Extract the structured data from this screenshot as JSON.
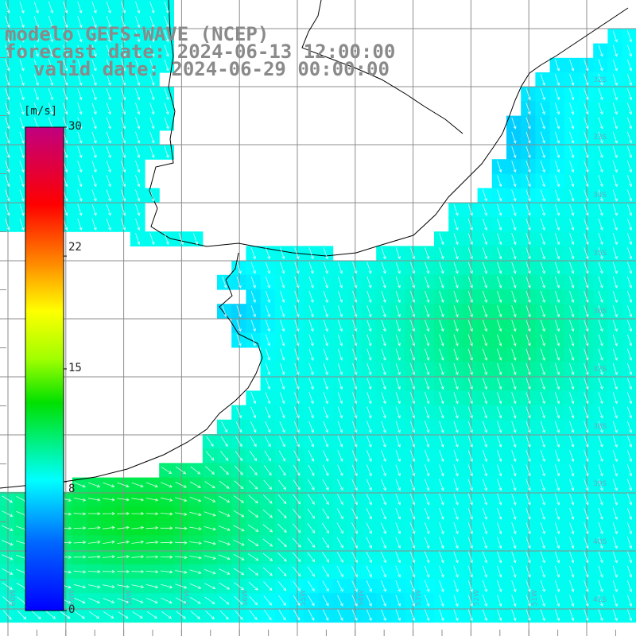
{
  "title": {
    "line1": "modelo GEFS-WAVE (NCEP)",
    "line2": "forecast date: 2024-06-13 12:00:00",
    "line3": "valid date: 2024-06-29 00:00:00"
  },
  "colorbar": {
    "unit": "[m/s]",
    "ticks": [
      "30",
      "22",
      "15",
      "8",
      "0"
    ],
    "tick_values": [
      30,
      22,
      15,
      8,
      0
    ],
    "min": 0,
    "max": 30
  },
  "lat_labels": [
    "32S",
    "33S",
    "34S",
    "35S",
    "36S",
    "37S",
    "38S",
    "39S",
    "40S",
    "41S"
  ],
  "lon_labels": [
    "60W",
    "59W",
    "58W",
    "57W",
    "56W",
    "55W",
    "54W",
    "53W",
    "52W",
    "51W"
  ],
  "field_summary": {
    "variable": "wind speed and direction",
    "dominant_direction": "from north-west over the shelf, south-westerly near the coast",
    "max_speed_region": "south-west corner and centre-east offshore (~12-13 m/s)"
  }
}
